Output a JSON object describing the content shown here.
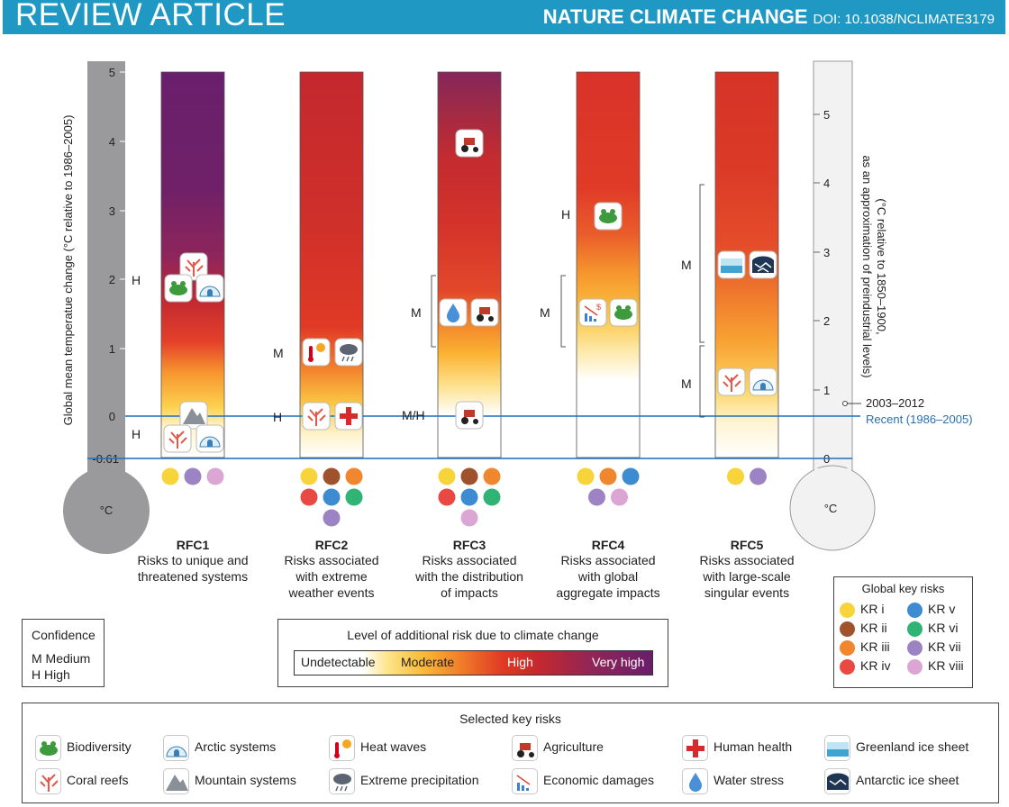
{
  "header": {
    "section": "REVIEW ARTICLE",
    "journal": "NATURE CLIMATE CHANGE",
    "doi": "DOI: 10.1038/NCLIMATE3179"
  },
  "axes": {
    "left_label": "Global mean temperatue change (°C relative to 1986–2005)",
    "left_ticks": [
      "5",
      "4",
      "3",
      "2",
      "1",
      "0",
      "-0.61"
    ],
    "right_label_1": "(°C relative to 1850–1900,",
    "right_label_2": "as an approximation of preindustrial levels)",
    "right_ticks": [
      "5",
      "4",
      "3",
      "2",
      "1",
      "0"
    ],
    "bulb_unit": "°C",
    "marker_2003": "2003–2012",
    "marker_recent": "Recent (1986–2005)"
  },
  "colors": {
    "recent_line": "#1f6fb8",
    "header": "#1f98c4"
  },
  "chart_data": {
    "type": "bar",
    "title": "",
    "ylabel": "Global mean temperatue change (°C relative to 1986–2005)",
    "ylim": [
      -0.61,
      5
    ],
    "categories": [
      "RFC1",
      "RFC2",
      "RFC3",
      "RFC4",
      "RFC5"
    ],
    "series": [],
    "risk_transitions": [
      {
        "rfc": "RFC1",
        "undetectable_to_moderate": 0,
        "moderate_to_high": 1.1,
        "high_to_very_high": 2.0
      },
      {
        "rfc": "RFC2",
        "undetectable_to_moderate": 0,
        "moderate_to_high": 1.1,
        "high_to_very_high": null
      },
      {
        "rfc": "RFC3",
        "undetectable_to_moderate": 0.4,
        "moderate_to_high": 1.6,
        "high_to_very_high": null
      },
      {
        "rfc": "RFC4",
        "undetectable_to_moderate": 0.9,
        "moderate_to_high": 2.6,
        "high_to_very_high": null
      },
      {
        "rfc": "RFC5",
        "undetectable_to_moderate": 0.5,
        "moderate_to_high": 1.0,
        "high_to_very_high": null
      }
    ]
  },
  "rfcs": [
    {
      "label": "RFC1",
      "desc": [
        "Risks to unique and",
        "threatened systems"
      ],
      "kr_colors": [
        "#f7d43a",
        "#9c84c4",
        "#dba6d4"
      ]
    },
    {
      "label": "RFC2",
      "desc": [
        "Risks associated",
        "with extreme",
        "weather events"
      ],
      "kr_colors": [
        "#f7d43a",
        "#a0522d",
        "#f0872f",
        "#e84a43",
        "#3d8bd1",
        "#2fb476",
        "#9c84c4"
      ]
    },
    {
      "label": "RFC3",
      "desc": [
        "Risks associated",
        "with the distribution",
        "of impacts"
      ],
      "kr_colors": [
        "#f7d43a",
        "#a0522d",
        "#f0872f",
        "#e84a43",
        "#3d8bd1",
        "#2fb476",
        "#dba6d4"
      ]
    },
    {
      "label": "RFC4",
      "desc": [
        "Risks associated",
        "with global",
        "aggregate impacts"
      ],
      "kr_colors": [
        "#f7d43a",
        "#f0872f",
        "#3d8bd1",
        "#9c84c4",
        "#dba6d4"
      ]
    },
    {
      "label": "RFC5",
      "desc": [
        "Risks associated",
        "with large-scale",
        "singular events"
      ],
      "kr_colors": [
        "#f7d43a",
        "#9c84c4"
      ]
    }
  ],
  "confidence_marks": [
    {
      "rfc": "RFC1",
      "text": "H"
    },
    {
      "rfc": "RFC1",
      "text": "H"
    },
    {
      "rfc": "RFC2",
      "text": "M"
    },
    {
      "rfc": "RFC2",
      "text": "H"
    },
    {
      "rfc": "RFC3",
      "text": "M"
    },
    {
      "rfc": "RFC3",
      "text": "M/H"
    },
    {
      "rfc": "RFC4",
      "text": "H"
    },
    {
      "rfc": "RFC4",
      "text": "M"
    },
    {
      "rfc": "RFC5",
      "text": "M"
    },
    {
      "rfc": "RFC5",
      "text": "M"
    }
  ],
  "confidence": {
    "title": "Confidence",
    "m": "M  Medium",
    "h": "H  High"
  },
  "level": {
    "title": "Level of additional risk due to climate change",
    "labels": [
      "Undetectable",
      "Moderate",
      "High",
      "Very high"
    ]
  },
  "global_key_risks": {
    "title": "Global key risks",
    "items": [
      {
        "label": "KR i",
        "color": "#f7d43a"
      },
      {
        "label": "KR v",
        "color": "#3d8bd1"
      },
      {
        "label": "KR ii",
        "color": "#a0522d"
      },
      {
        "label": "KR vi",
        "color": "#2fb476"
      },
      {
        "label": "KR iii",
        "color": "#f0872f"
      },
      {
        "label": "KR vii",
        "color": "#9c84c4"
      },
      {
        "label": "KR iv",
        "color": "#e84a43"
      },
      {
        "label": "KR viii",
        "color": "#dba6d4"
      }
    ]
  },
  "selected_key_risks": {
    "title": "Selected key risks",
    "items": [
      {
        "label": "Biodiversity",
        "icon": "frog-icon"
      },
      {
        "label": "Coral reefs",
        "icon": "coral-icon"
      },
      {
        "label": "Arctic systems",
        "icon": "igloo-icon"
      },
      {
        "label": "Mountain systems",
        "icon": "mountain-icon"
      },
      {
        "label": "Heat waves",
        "icon": "heat-wave-icon"
      },
      {
        "label": "Extreme precipitation",
        "icon": "rain-cloud-icon"
      },
      {
        "label": "Agriculture",
        "icon": "tractor-icon"
      },
      {
        "label": "Economic damages",
        "icon": "economic-damages-icon"
      },
      {
        "label": "Human health",
        "icon": "red-cross-icon"
      },
      {
        "label": "Water stress",
        "icon": "water-drop-icon"
      },
      {
        "label": "Greenland ice sheet",
        "icon": "greenland-ice-icon"
      },
      {
        "label": "Antarctic ice sheet",
        "icon": "antarctic-ice-icon"
      }
    ]
  }
}
